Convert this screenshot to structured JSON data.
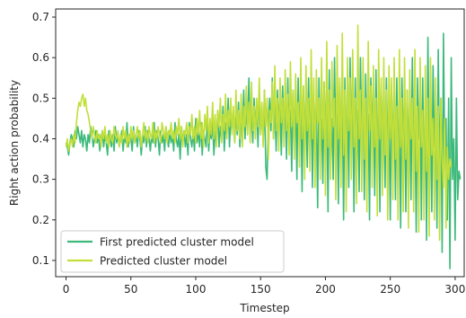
{
  "chart_data": {
    "type": "line",
    "title": "",
    "xlabel": "Timestep",
    "ylabel": "Right action probability",
    "xlim": [
      -8,
      307
    ],
    "ylim": [
      0.06,
      0.72
    ],
    "xticks": [
      0,
      50,
      100,
      150,
      200,
      250,
      300
    ],
    "yticks": [
      0.1,
      0.2,
      0.3,
      0.4,
      0.5,
      0.6,
      0.7
    ],
    "xtick_labels": [
      "0",
      "50",
      "100",
      "150",
      "200",
      "250",
      "300"
    ],
    "ytick_labels": [
      "0.1",
      "0.2",
      "0.3",
      "0.4",
      "0.5",
      "0.6",
      "0.7"
    ],
    "grid": false,
    "legend_position": "lower-left",
    "series": [
      {
        "name": "First predicted cluster model",
        "color": "#3cb97a",
        "x_start": 0,
        "x_step": 1,
        "values": [
          0.39,
          0.38,
          0.36,
          0.39,
          0.41,
          0.4,
          0.38,
          0.42,
          0.4,
          0.43,
          0.41,
          0.39,
          0.42,
          0.38,
          0.41,
          0.4,
          0.37,
          0.41,
          0.39,
          0.43,
          0.41,
          0.38,
          0.4,
          0.42,
          0.39,
          0.41,
          0.37,
          0.4,
          0.42,
          0.38,
          0.41,
          0.39,
          0.36,
          0.42,
          0.4,
          0.38,
          0.41,
          0.37,
          0.43,
          0.39,
          0.41,
          0.38,
          0.4,
          0.42,
          0.37,
          0.41,
          0.39,
          0.44,
          0.38,
          0.41,
          0.4,
          0.37,
          0.43,
          0.39,
          0.41,
          0.38,
          0.42,
          0.4,
          0.36,
          0.41,
          0.39,
          0.43,
          0.38,
          0.42,
          0.4,
          0.37,
          0.41,
          0.39,
          0.44,
          0.38,
          0.42,
          0.4,
          0.36,
          0.42,
          0.39,
          0.41,
          0.37,
          0.43,
          0.4,
          0.38,
          0.42,
          0.39,
          0.41,
          0.37,
          0.44,
          0.4,
          0.38,
          0.41,
          0.35,
          0.43,
          0.39,
          0.42,
          0.38,
          0.41,
          0.36,
          0.44,
          0.4,
          0.38,
          0.42,
          0.37,
          0.45,
          0.39,
          0.42,
          0.38,
          0.44,
          0.36,
          0.42,
          0.4,
          0.38,
          0.45,
          0.37,
          0.42,
          0.4,
          0.44,
          0.36,
          0.42,
          0.39,
          0.47,
          0.38,
          0.43,
          0.4,
          0.48,
          0.37,
          0.44,
          0.41,
          0.5,
          0.38,
          0.45,
          0.42,
          0.47,
          0.39,
          0.46,
          0.41,
          0.49,
          0.38,
          0.44,
          0.42,
          0.52,
          0.4,
          0.47,
          0.43,
          0.55,
          0.41,
          0.46,
          0.39,
          0.5,
          0.42,
          0.48,
          0.38,
          0.51,
          0.42,
          0.47,
          0.39,
          0.52,
          0.33,
          0.3,
          0.44,
          0.5,
          0.42,
          0.55,
          0.4,
          0.48,
          0.37,
          0.52,
          0.43,
          0.47,
          0.36,
          0.53,
          0.41,
          0.49,
          0.35,
          0.55,
          0.4,
          0.47,
          0.32,
          0.52,
          0.42,
          0.5,
          0.3,
          0.55,
          0.38,
          0.48,
          0.27,
          0.53,
          0.41,
          0.46,
          0.33,
          0.55,
          0.37,
          0.5,
          0.28,
          0.52,
          0.4,
          0.47,
          0.23,
          0.55,
          0.36,
          0.45,
          0.29,
          0.54,
          0.4,
          0.48,
          0.22,
          0.57,
          0.35,
          0.45,
          0.3,
          0.6,
          0.38,
          0.46,
          0.24,
          0.54,
          0.42,
          0.5,
          0.2,
          0.55,
          0.35,
          0.48,
          0.28,
          0.6,
          0.4,
          0.52,
          0.22,
          0.55,
          0.33,
          0.47,
          0.27,
          0.6,
          0.4,
          0.5,
          0.25,
          0.56,
          0.38,
          0.46,
          0.2,
          0.55,
          0.42,
          0.5,
          0.26,
          0.57,
          0.35,
          0.48,
          0.22,
          0.53,
          0.4,
          0.47,
          0.28,
          0.55,
          0.38,
          0.45,
          0.2,
          0.52,
          0.4,
          0.48,
          0.25,
          0.55,
          0.33,
          0.45,
          0.18,
          0.55,
          0.4,
          0.5,
          0.22,
          0.52,
          0.38,
          0.46,
          0.25,
          0.6,
          0.35,
          0.45,
          0.17,
          0.55,
          0.4,
          0.5,
          0.2,
          0.55,
          0.3,
          0.48,
          0.15,
          0.65,
          0.35,
          0.45,
          0.22,
          0.58,
          0.38,
          0.47,
          0.18,
          0.62,
          0.3,
          0.5,
          0.12,
          0.66,
          0.35,
          0.45,
          0.2,
          0.5,
          0.08,
          0.6,
          0.3,
          0.4,
          0.15,
          0.5,
          0.25,
          0.32,
          0.3
        ]
      },
      {
        "name": "Predicted cluster model",
        "color": "#c1df3a",
        "x_start": 0,
        "x_step": 1,
        "values": [
          0.38,
          0.4,
          0.37,
          0.39,
          0.4,
          0.38,
          0.41,
          0.39,
          0.44,
          0.47,
          0.49,
          0.48,
          0.5,
          0.51,
          0.48,
          0.5,
          0.47,
          0.46,
          0.44,
          0.42,
          0.4,
          0.43,
          0.41,
          0.39,
          0.42,
          0.4,
          0.41,
          0.38,
          0.42,
          0.4,
          0.43,
          0.39,
          0.41,
          0.38,
          0.42,
          0.4,
          0.39,
          0.43,
          0.41,
          0.4,
          0.42,
          0.38,
          0.41,
          0.39,
          0.43,
          0.4,
          0.42,
          0.38,
          0.41,
          0.39,
          0.43,
          0.4,
          0.42,
          0.39,
          0.41,
          0.43,
          0.4,
          0.42,
          0.38,
          0.41,
          0.44,
          0.4,
          0.42,
          0.39,
          0.43,
          0.41,
          0.4,
          0.44,
          0.39,
          0.42,
          0.4,
          0.43,
          0.41,
          0.39,
          0.44,
          0.42,
          0.4,
          0.43,
          0.39,
          0.42,
          0.41,
          0.44,
          0.4,
          0.42,
          0.39,
          0.43,
          0.41,
          0.45,
          0.4,
          0.43,
          0.38,
          0.42,
          0.41,
          0.44,
          0.39,
          0.43,
          0.41,
          0.46,
          0.4,
          0.43,
          0.39,
          0.45,
          0.41,
          0.47,
          0.4,
          0.44,
          0.38,
          0.46,
          0.42,
          0.48,
          0.39,
          0.45,
          0.41,
          0.49,
          0.4,
          0.46,
          0.38,
          0.47,
          0.43,
          0.5,
          0.39,
          0.46,
          0.42,
          0.51,
          0.4,
          0.47,
          0.43,
          0.5,
          0.41,
          0.48,
          0.39,
          0.52,
          0.42,
          0.47,
          0.4,
          0.51,
          0.38,
          0.48,
          0.43,
          0.53,
          0.41,
          0.49,
          0.39,
          0.54,
          0.42,
          0.48,
          0.4,
          0.5,
          0.43,
          0.55,
          0.41,
          0.49,
          0.38,
          0.52,
          0.43,
          0.5,
          0.35,
          0.47,
          0.44,
          0.54,
          0.4,
          0.58,
          0.42,
          0.5,
          0.37,
          0.55,
          0.44,
          0.5,
          0.38,
          0.57,
          0.42,
          0.51,
          0.36,
          0.59,
          0.43,
          0.52,
          0.35,
          0.56,
          0.44,
          0.49,
          0.33,
          0.6,
          0.4,
          0.53,
          0.3,
          0.58,
          0.42,
          0.5,
          0.32,
          0.62,
          0.4,
          0.55,
          0.28,
          0.57,
          0.44,
          0.5,
          0.3,
          0.6,
          0.4,
          0.54,
          0.26,
          0.64,
          0.38,
          0.52,
          0.3,
          0.59,
          0.43,
          0.5,
          0.25,
          0.63,
          0.4,
          0.55,
          0.28,
          0.66,
          0.36,
          0.52,
          0.22,
          0.6,
          0.42,
          0.55,
          0.3,
          0.62,
          0.38,
          0.5,
          0.24,
          0.68,
          0.4,
          0.52,
          0.27,
          0.6,
          0.35,
          0.5,
          0.22,
          0.64,
          0.42,
          0.53,
          0.28,
          0.58,
          0.38,
          0.5,
          0.21,
          0.62,
          0.4,
          0.55,
          0.26,
          0.6,
          0.36,
          0.52,
          0.2,
          0.58,
          0.4,
          0.55,
          0.25,
          0.6,
          0.35,
          0.48,
          0.2,
          0.62,
          0.38,
          0.5,
          0.22,
          0.6,
          0.35,
          0.52,
          0.18,
          0.57,
          0.4,
          0.5,
          0.22,
          0.62,
          0.32,
          0.48,
          0.17,
          0.6,
          0.38,
          0.47,
          0.2,
          0.58,
          0.32,
          0.5,
          0.16,
          0.6,
          0.36,
          0.45,
          0.2,
          0.55,
          0.3,
          0.48,
          0.15,
          0.5,
          0.35,
          0.28,
          0.45,
          0.18,
          0.38,
          0.3,
          0.35,
          0.33
        ]
      }
    ]
  }
}
